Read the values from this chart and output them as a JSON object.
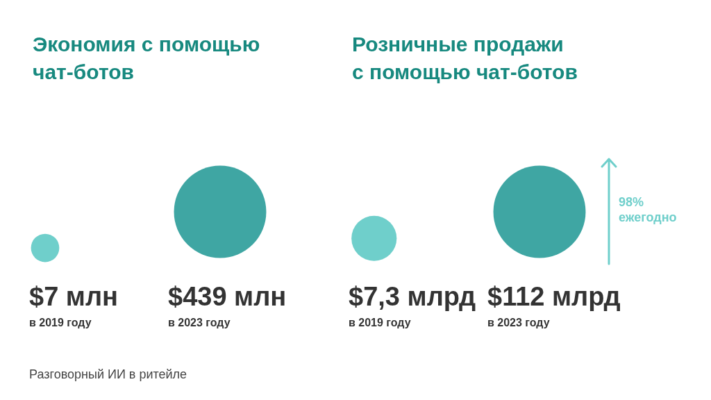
{
  "chart_data": [
    {
      "type": "bubble",
      "title": "Экономия с помощью\nчат-ботов",
      "categories": [
        "в 2019 году",
        "в 2023 году"
      ],
      "values": [
        7,
        439
      ],
      "value_labels": [
        "$7 млн",
        "$439 млн"
      ],
      "sizes": [
        0.094,
        1
      ],
      "colors": [
        "#6fcfcb",
        "#3fa6a3"
      ],
      "annotations": [
        "Разговорный ИИ в ритейле"
      ]
    },
    {
      "type": "bubble",
      "title": "Розничные продажи\nс помощью чат-ботов",
      "categories": [
        "в 2019 году",
        "в 2023 году"
      ],
      "values": [
        7.3,
        112
      ],
      "value_labels": [
        "$7,3 млрд",
        "$112 млрд"
      ],
      "sizes": [
        0.24,
        1
      ],
      "colors": [
        "#6fcfcb",
        "#3fa6a3"
      ],
      "annotations": [
        "98% ежегодно"
      ]
    }
  ]
}
